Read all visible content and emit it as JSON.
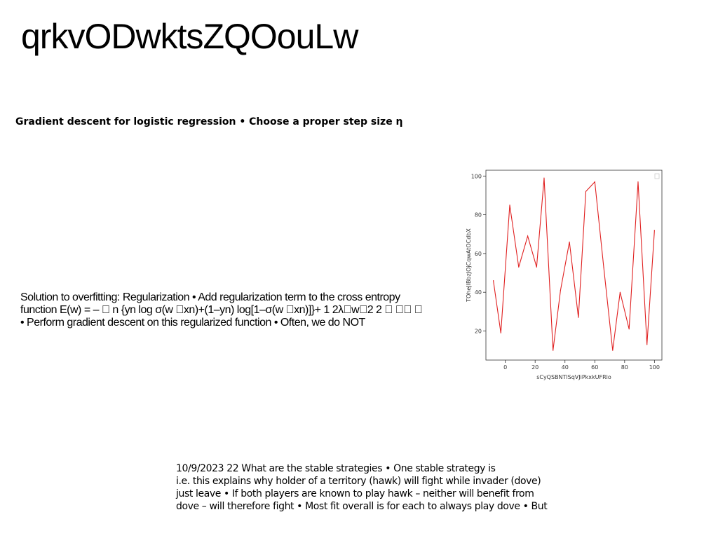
{
  "page": {
    "title": "qrkvODwktsZQOouLw",
    "subheading": "Gradient descent for logistic regression • Choose a proper step size η"
  },
  "paragraph_left": {
    "lines": [
      "Solution to overfitting: Regularization • Add regularization term to the cross entropy",
      "function E(w) = – \u0000 n {yn log σ(w \u0000xn)+(1–yn) log[1–σ(w \u0000xn)]}+ 1 2λ\u0000w\u00002 2 \u0000 \u0000\u0000 \u0000",
      "• Perform gradient descent on this regularized function • Often, we do NOT"
    ]
  },
  "paragraph_bottom": {
    "lines": [
      "10/9/2023 22 What are the stable strategies • One stable strategy is",
      "i.e. this explains why holder of a territory (hawk) will fight while invader (dove)",
      "just leave • If both players are known to play hawk – neither will benefit from",
      "dove – will therefore fight • Most fit overall is for each to always play dove • But"
    ]
  },
  "chart_data": {
    "type": "line",
    "xlabel": "sCyQSBNTlSqVJiPkxkUFRlo",
    "ylabel": "TOheJIBbzJOjCqwAtOCdbX",
    "x": [
      -8,
      -3,
      3,
      9,
      15,
      21,
      26,
      32,
      37,
      43,
      49,
      54,
      60,
      66,
      72,
      77,
      83,
      89,
      95,
      100
    ],
    "series": [
      {
        "color": "#e02020",
        "values": [
          46,
          19,
          85,
          53,
          69,
          53,
          99,
          10,
          41,
          66,
          27,
          92,
          97,
          53,
          10,
          40,
          21,
          97,
          13,
          72
        ]
      }
    ],
    "xlim": [
      -13,
      105
    ],
    "ylim": [
      5,
      103
    ],
    "xticks": [
      0,
      20,
      40,
      60,
      80,
      100
    ],
    "yticks": [
      20,
      40,
      60,
      80,
      100
    ],
    "legend": "top-right",
    "grid": false
  }
}
